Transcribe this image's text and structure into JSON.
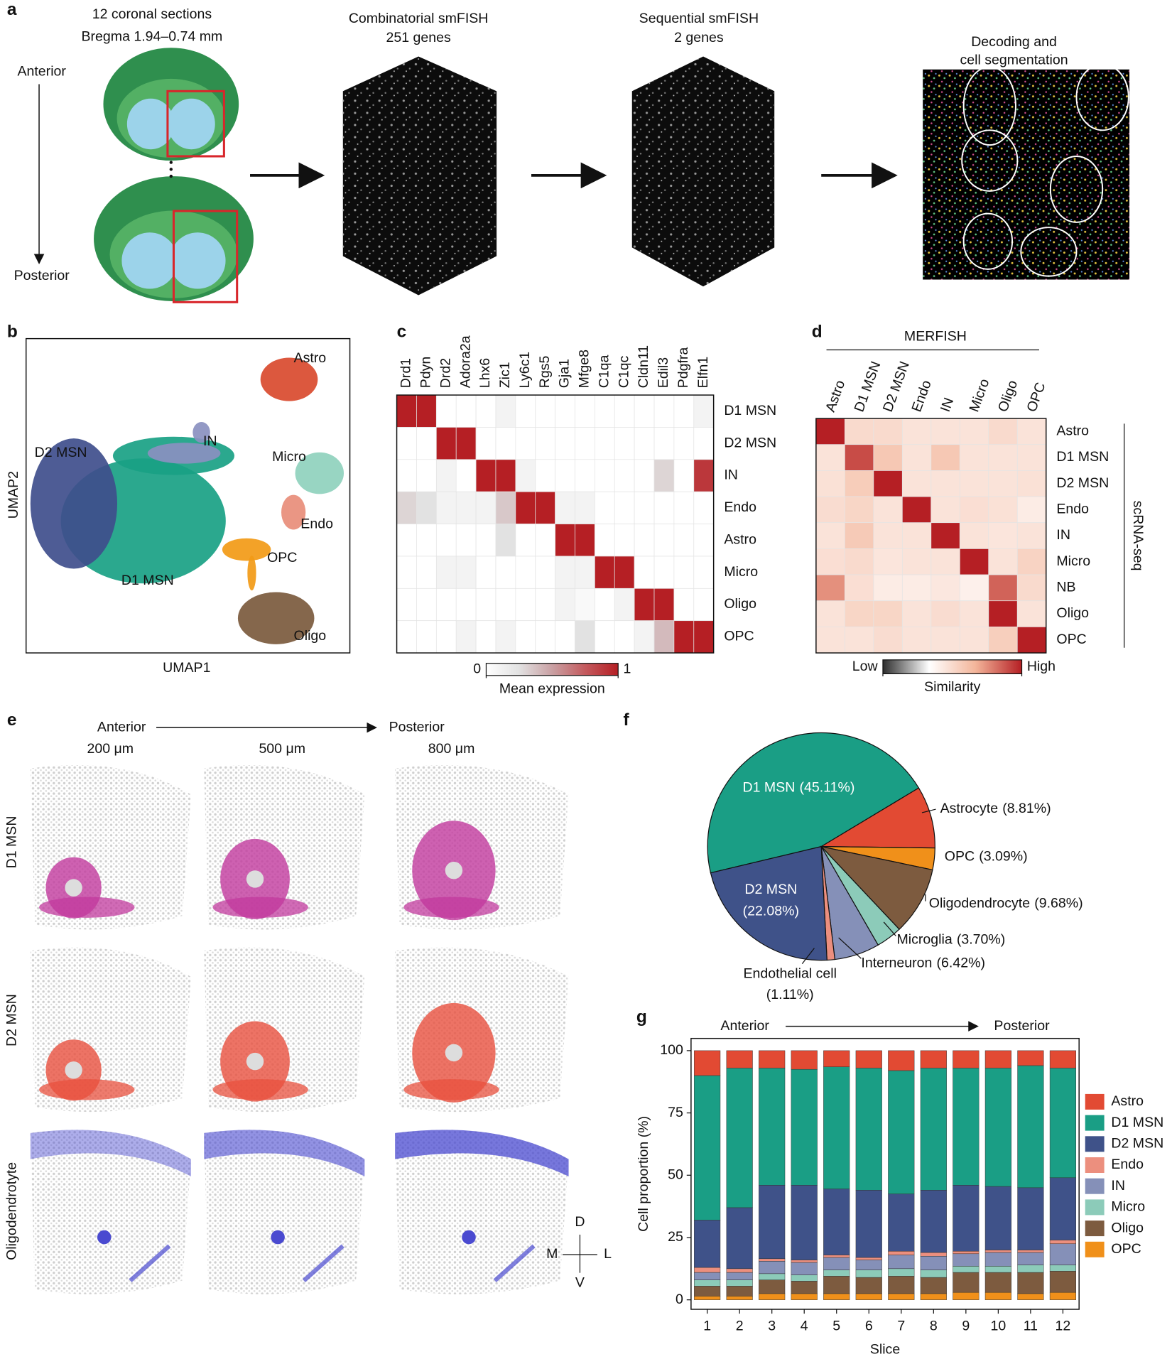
{
  "panel_a": {
    "label": "a",
    "sections_title": "12 coronal sections",
    "bregma": "Bregma 1.94–0.74 mm",
    "anterior": "Anterior",
    "posterior": "Posterior",
    "step2_title": "Combinatorial smFISH",
    "step2_genes": "251 genes",
    "step3_title": "Sequential smFISH",
    "step3_genes": "2 genes",
    "step4_line1": "Decoding and",
    "step4_line2": "cell segmentation"
  },
  "panel_b": {
    "label": "b",
    "xlabel": "UMAP1",
    "ylabel": "UMAP2",
    "clusters": [
      {
        "name": "Astro",
        "color": "#d94a2e"
      },
      {
        "name": "IN",
        "color": "#8a90c0"
      },
      {
        "name": "D2 MSN",
        "color": "#3f4e8c"
      },
      {
        "name": "Micro",
        "color": "#8fd1bd"
      },
      {
        "name": "Endo",
        "color": "#e88d7a"
      },
      {
        "name": "OPC",
        "color": "#f29a16"
      },
      {
        "name": "D1 MSN",
        "color": "#19a184"
      },
      {
        "name": "Oligo",
        "color": "#7b5a3d"
      }
    ]
  },
  "panel_e": {
    "label": "e",
    "anterior": "Anterior",
    "posterior": "Posterior",
    "distances": [
      "200 μm",
      "500 μm",
      "800 μm"
    ],
    "rows": [
      {
        "name": "D1 MSN",
        "color": "#c2399d"
      },
      {
        "name": "D2 MSN",
        "color": "#e8503e"
      },
      {
        "name": "Oligodendrotyte",
        "color": "#4a4ad0"
      }
    ],
    "compass": {
      "dorsal": "D",
      "ventral": "V",
      "medial": "M",
      "lateral": "L"
    }
  },
  "chart_data": [
    {
      "type": "heatmap",
      "panel": "c",
      "x_categories": [
        "Drd1",
        "Pdyn",
        "Drd2",
        "Adora2a",
        "Lhx6",
        "Zic1",
        "Ly6c1",
        "Rgs5",
        "Gja1",
        "Mfge8",
        "C1qa",
        "C1qc",
        "Cldn11",
        "Edil3",
        "Pdgfra",
        "Elfn1"
      ],
      "y_categories": [
        "D1 MSN",
        "D2 MSN",
        "IN",
        "Endo",
        "Astro",
        "Micro",
        "Oligo",
        "OPC"
      ],
      "values": [
        [
          1,
          1,
          0,
          0,
          0,
          0.1,
          0,
          0,
          0,
          0,
          0,
          0,
          0,
          0,
          0,
          0.1
        ],
        [
          0,
          0,
          1,
          1,
          0,
          0,
          0,
          0,
          0,
          0,
          0,
          0,
          0,
          0,
          0,
          0
        ],
        [
          0,
          0,
          0.1,
          0,
          1,
          1,
          0.1,
          0,
          0,
          0,
          0,
          0,
          0,
          0.3,
          0,
          0.9
        ],
        [
          0.3,
          0.25,
          0.1,
          0.1,
          0.1,
          0.35,
          1,
          1,
          0.1,
          0.1,
          0,
          0,
          0,
          0,
          0,
          0
        ],
        [
          0,
          0,
          0,
          0,
          0,
          0.25,
          0,
          0,
          1,
          1,
          0,
          0,
          0,
          0,
          0,
          0
        ],
        [
          0,
          0,
          0.1,
          0.1,
          0,
          0,
          0,
          0,
          0.1,
          0.1,
          1,
          1,
          0,
          0,
          0,
          0
        ],
        [
          0,
          0,
          0,
          0,
          0,
          0,
          0,
          0,
          0.1,
          0.05,
          0,
          0.1,
          1,
          1,
          0,
          0
        ],
        [
          0,
          0,
          0,
          0.1,
          0,
          0.1,
          0,
          0,
          0,
          0.25,
          0,
          0,
          0.1,
          0.4,
          1,
          1
        ]
      ],
      "colormap": [
        "#ffffff",
        "#e2e2e2",
        "#c9a0a3",
        "#c45a5e",
        "#b51f24"
      ],
      "clim": [
        0,
        1
      ],
      "cticks": [
        0,
        1
      ],
      "clabel": "Mean expression"
    },
    {
      "type": "heatmap",
      "panel": "d",
      "x_title": "MERFISH",
      "y_title": "scRNA-seq",
      "x_categories": [
        "Astro",
        "D1 MSN",
        "D2 MSN",
        "Endo",
        "IN",
        "Micro",
        "Oligo",
        "OPC"
      ],
      "y_categories": [
        "Astro",
        "D1 MSN",
        "D2 MSN",
        "Endo",
        "IN",
        "Micro",
        "NB",
        "Oligo",
        "OPC"
      ],
      "values": [
        [
          1,
          0.5,
          0.5,
          0.46,
          0.46,
          0.46,
          0.5,
          0.46
        ],
        [
          0.46,
          0.9,
          0.58,
          0.46,
          0.58,
          0.46,
          0.46,
          0.46
        ],
        [
          0.47,
          0.56,
          1,
          0.46,
          0.46,
          0.46,
          0.46,
          0.47
        ],
        [
          0.49,
          0.52,
          0.46,
          1,
          0.46,
          0.48,
          0.47,
          0.42
        ],
        [
          0.46,
          0.57,
          0.46,
          0.46,
          1,
          0.46,
          0.45,
          0.46
        ],
        [
          0.48,
          0.5,
          0.45,
          0.46,
          0.46,
          1,
          0.46,
          0.53
        ],
        [
          0.75,
          0.48,
          0.42,
          0.42,
          0.44,
          0.4,
          0.85,
          0.5
        ],
        [
          0.46,
          0.52,
          0.52,
          0.46,
          0.49,
          0.46,
          1,
          0.46
        ],
        [
          0.46,
          0.46,
          0.49,
          0.46,
          0.46,
          0.46,
          0.55,
          1
        ]
      ],
      "colormap": [
        "#2e2e2e",
        "#ffffff",
        "#f3b59a",
        "#b51f24"
      ],
      "clim": [
        0,
        1
      ],
      "cticks": [
        {
          "value": 0,
          "label": "Low"
        },
        {
          "value": 1,
          "label": "High"
        }
      ],
      "clabel": "Similarity"
    },
    {
      "type": "pie",
      "panel": "f",
      "categories": [
        "D1 MSN",
        "Astrocyte",
        "OPC",
        "Oligodendrocyte",
        "Microglia",
        "Interneuron",
        "Endothelial cell",
        "D2 MSN"
      ],
      "values": [
        45.11,
        8.81,
        3.09,
        9.68,
        3.7,
        6.42,
        1.11,
        22.08
      ],
      "value_labels": [
        "(45.11%)",
        "(8.81%)",
        "(3.09%)",
        "(9.68%)",
        "(3.70%)",
        "(6.42%)",
        "(1.11%)",
        "(22.08%)"
      ],
      "colors": [
        "#1a9e85",
        "#e24a33",
        "#f0901a",
        "#7d5b3f",
        "#8ccbb9",
        "#8590b8",
        "#ec8f7e",
        "#3f5289"
      ]
    },
    {
      "type": "stacked_bar",
      "panel": "g",
      "annotations": {
        "left": "Anterior",
        "right": "Posterior"
      },
      "xlabel": "Slice",
      "ylabel": "Cell proportion (%)",
      "categories": [
        1,
        2,
        3,
        4,
        5,
        6,
        7,
        8,
        9,
        10,
        11,
        12
      ],
      "ylim": [
        -3.8,
        104.9
      ],
      "yticks": [
        0,
        25,
        50,
        75,
        100
      ],
      "legend": "right",
      "series": [
        {
          "name": "Astro",
          "color": "#e24a33",
          "values": [
            10,
            7,
            7,
            7.5,
            6.5,
            7,
            8,
            7,
            7,
            7,
            6,
            7
          ]
        },
        {
          "name": "D1 MSN",
          "color": "#1a9e85",
          "values": [
            58,
            56,
            47,
            46.5,
            49,
            49,
            49.5,
            49,
            47,
            47.5,
            49,
            44
          ]
        },
        {
          "name": "D2 MSN",
          "color": "#3f5289",
          "values": [
            19,
            24.5,
            29.5,
            30,
            26.5,
            27,
            23,
            25,
            26.5,
            25.5,
            25,
            25
          ]
        },
        {
          "name": "Endo",
          "color": "#ec8f7e",
          "values": [
            2,
            1.5,
            1,
            1,
            1,
            1,
            1.5,
            1.5,
            1,
            1,
            1,
            1.5
          ]
        },
        {
          "name": "IN",
          "color": "#8590b8",
          "values": [
            3,
            3,
            5,
            5,
            5,
            4,
            5.5,
            5.5,
            5,
            5.5,
            5,
            8.5
          ]
        },
        {
          "name": "Micro",
          "color": "#8ccbb9",
          "values": [
            2.5,
            2.5,
            2.5,
            2.5,
            2.5,
            3,
            3,
            3,
            2.5,
            2.5,
            3,
            2.5
          ]
        },
        {
          "name": "Oligo",
          "color": "#7d5b3f",
          "values": [
            4,
            4,
            5.5,
            5,
            7,
            6.5,
            7,
            6.5,
            8,
            8,
            8.5,
            8.5
          ]
        },
        {
          "name": "OPC",
          "color": "#f0901a",
          "values": [
            1.5,
            1.5,
            2.5,
            2.5,
            2.5,
            2.5,
            2.5,
            2.5,
            3,
            3,
            2.5,
            3
          ]
        }
      ]
    }
  ]
}
